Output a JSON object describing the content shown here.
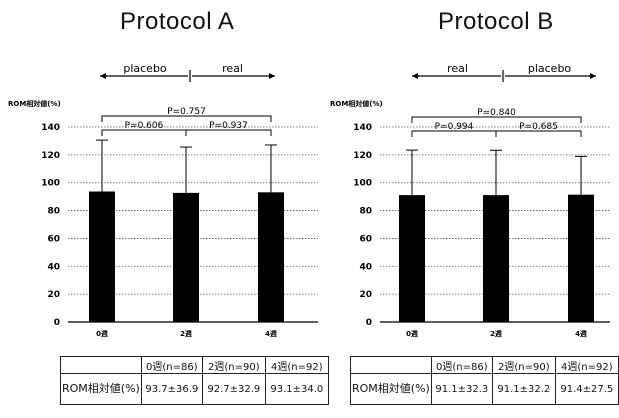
{
  "panels": [
    {
      "title": "Protocol A",
      "period_left": "placebo",
      "period_right": "real",
      "table": {
        "headers": [
          "",
          "0週(n=86)",
          "2週(n=90)",
          "4週(n=92)"
        ],
        "row_label": "ROM相対値(%)",
        "values": [
          "93.7±36.9",
          "92.7±32.9",
          "93.1±34.0"
        ]
      }
    },
    {
      "title": "Protocol B",
      "period_left": "real",
      "period_right": "placebo",
      "table": {
        "headers": [
          "",
          "0週(n=86)",
          "2週(n=90)",
          "4週(n=92)"
        ],
        "row_label": "ROM相対値(%)",
        "values": [
          "91.1±32.3",
          "91.1±32.2",
          "91.4±27.5"
        ]
      }
    }
  ],
  "chart_data": [
    {
      "type": "bar",
      "title": "Protocol A",
      "ylabel": "ROM相対値(%)",
      "categories": [
        "0週",
        "2週",
        "4週"
      ],
      "values": [
        93.7,
        92.7,
        93.1
      ],
      "error_upper": [
        36.9,
        32.9,
        34.0
      ],
      "yticks": [
        0,
        20,
        40,
        60,
        80,
        100,
        120,
        140
      ],
      "ylim": [
        0,
        140
      ],
      "grid": true,
      "bar_color": "#000000",
      "comparisons": [
        {
          "from": 0,
          "to": 2,
          "label": "P=0.757"
        },
        {
          "from": 0,
          "to": 1,
          "label": "P=0.606"
        },
        {
          "from": 1,
          "to": 2,
          "label": "P=0.937"
        }
      ]
    },
    {
      "type": "bar",
      "title": "Protocol B",
      "ylabel": "ROM相対値(%)",
      "categories": [
        "0週",
        "2週",
        "4週"
      ],
      "values": [
        91.1,
        91.1,
        91.4
      ],
      "error_upper": [
        32.3,
        32.2,
        27.5
      ],
      "yticks": [
        0,
        20,
        40,
        60,
        80,
        100,
        120,
        140
      ],
      "ylim": [
        0,
        140
      ],
      "grid": true,
      "bar_color": "#000000",
      "comparisons": [
        {
          "from": 0,
          "to": 2,
          "label": "P=0.840"
        },
        {
          "from": 0,
          "to": 1,
          "label": "P=0.994"
        },
        {
          "from": 1,
          "to": 2,
          "label": "P=0.685"
        }
      ]
    }
  ]
}
